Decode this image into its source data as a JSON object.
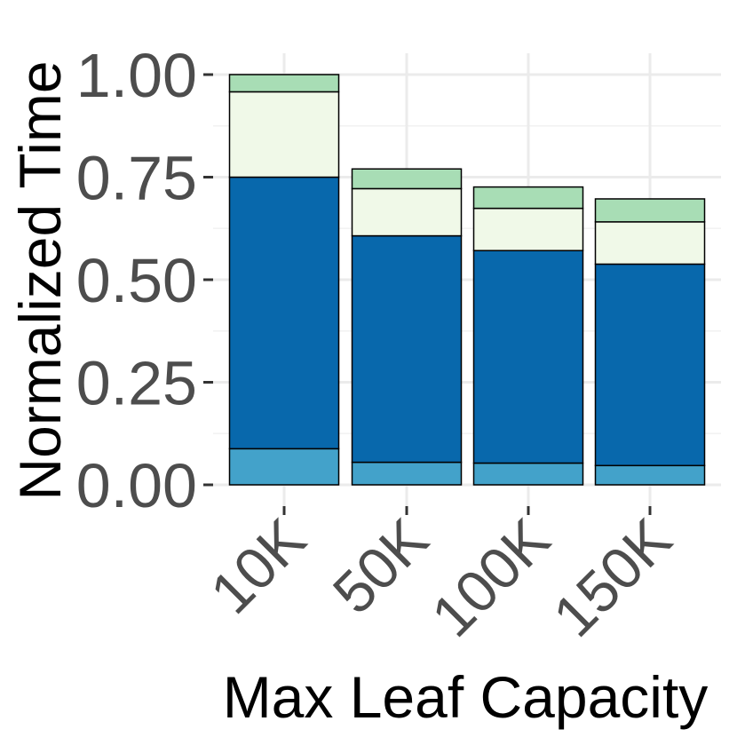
{
  "chart_data": {
    "type": "bar",
    "stacked": true,
    "title": "",
    "xlabel": "Max Leaf Capacity",
    "ylabel": "Normalized Time",
    "categories": [
      "10K",
      "50K",
      "100K",
      "150K"
    ],
    "ylim": [
      0,
      1
    ],
    "yticks": [
      "0.00",
      "0.25",
      "0.50",
      "0.75",
      "1.00"
    ],
    "ytick_values": [
      0,
      0.25,
      0.5,
      0.75,
      1.0
    ],
    "grid": true,
    "legend": "none",
    "series": [
      {
        "color": "#43a2ca",
        "values": [
          0.088,
          0.055,
          0.053,
          0.047
        ]
      },
      {
        "color": "#0868ac",
        "values": [
          0.662,
          0.552,
          0.518,
          0.491
        ]
      },
      {
        "color": "#f0f9e8",
        "values": [
          0.208,
          0.115,
          0.103,
          0.103
        ]
      },
      {
        "color": "#a8ddb5",
        "values": [
          0.042,
          0.048,
          0.052,
          0.056
        ]
      }
    ]
  }
}
